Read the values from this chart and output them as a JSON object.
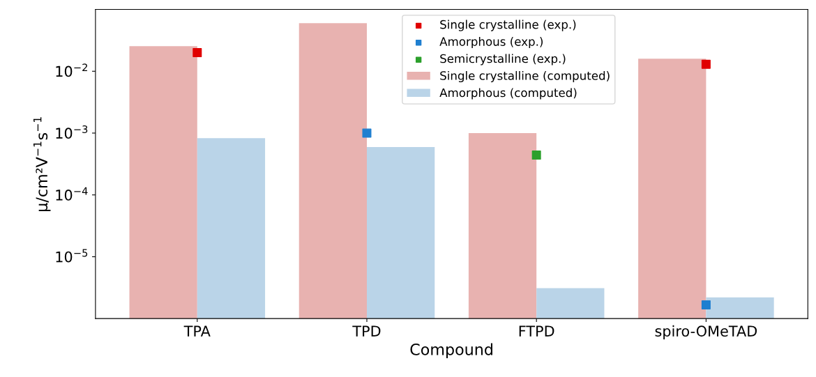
{
  "chart_data": {
    "type": "bar",
    "xlabel": "Compound",
    "ylabel": "μ/cm²V$^{−1}$s$^{−1}$",
    "categories": [
      "TPA",
      "TPD",
      "FTPD",
      "spiro-OMeTAD"
    ],
    "series": [
      {
        "name": "Single crystalline (exp.)",
        "type": "scatter",
        "color": "#e00000",
        "values": [
          0.02,
          null,
          null,
          0.013
        ]
      },
      {
        "name": "Amorphous (exp.)",
        "type": "scatter",
        "color": "#1f7fd0",
        "values": [
          null,
          0.001,
          null,
          1.67e-06
        ]
      },
      {
        "name": "Semicrystalline (exp.)",
        "type": "scatter",
        "color": "#2ca02c",
        "values": [
          null,
          null,
          0.00044,
          null
        ]
      },
      {
        "name": "Single crystalline (computed)",
        "color": "#e8b2b0",
        "values": [
          0.0255,
          0.06,
          0.001,
          0.016
        ]
      },
      {
        "name": "Amorphous (computed)",
        "color": "#bad4e8",
        "values": [
          0.00083,
          0.000595,
          3.1e-06,
          2.2e-06
        ]
      }
    ],
    "log": "y",
    "ylim": [
      1e-06,
      0.1
    ],
    "yticks": [
      {
        "value": 1e-05,
        "label": "10$^{−5}$"
      },
      {
        "value": 0.0001,
        "label": "10$^{−4}$"
      },
      {
        "value": 0.001,
        "label": "10$^{−3}$"
      },
      {
        "value": 0.01,
        "label": "10$^{−2}$"
      }
    ],
    "marker": "square",
    "legend": "top",
    "grid": false
  }
}
